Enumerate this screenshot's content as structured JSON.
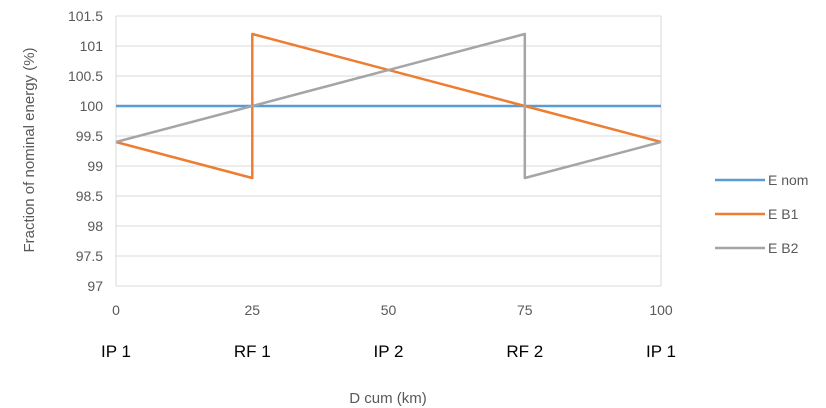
{
  "chart_data": {
    "type": "line",
    "xlabel": "D cum (km)",
    "ylabel": "Fraction of nominal energy (%)",
    "xlim": [
      0,
      100
    ],
    "ylim": [
      97,
      101.5
    ],
    "x_ticks": [
      "0",
      "25",
      "50",
      "75",
      "100"
    ],
    "y_ticks": [
      "97",
      "97.5",
      "98",
      "98.5",
      "99",
      "99.5",
      "100",
      "100.5",
      "101",
      "101.5"
    ],
    "x_categories": [
      {
        "x": 0,
        "label": "IP 1"
      },
      {
        "x": 25,
        "label": "RF 1"
      },
      {
        "x": 50,
        "label": "IP 2"
      },
      {
        "x": 75,
        "label": "RF 2"
      },
      {
        "x": 100,
        "label": "IP 1"
      }
    ],
    "grid": true,
    "legend_position": "right",
    "series": [
      {
        "name": "E nom",
        "color": "#5b9bd5",
        "points": [
          [
            0,
            100
          ],
          [
            100,
            100
          ]
        ]
      },
      {
        "name": "E B1",
        "color": "#ed7d31",
        "points": [
          [
            0,
            99.4
          ],
          [
            25,
            98.8
          ],
          [
            25,
            101.2
          ],
          [
            75,
            100
          ],
          [
            100,
            99.4
          ]
        ]
      },
      {
        "name": "E B2",
        "color": "#a5a5a5",
        "points": [
          [
            0,
            99.4
          ],
          [
            75,
            101.2
          ],
          [
            75,
            98.8
          ],
          [
            100,
            99.4
          ]
        ]
      }
    ]
  }
}
